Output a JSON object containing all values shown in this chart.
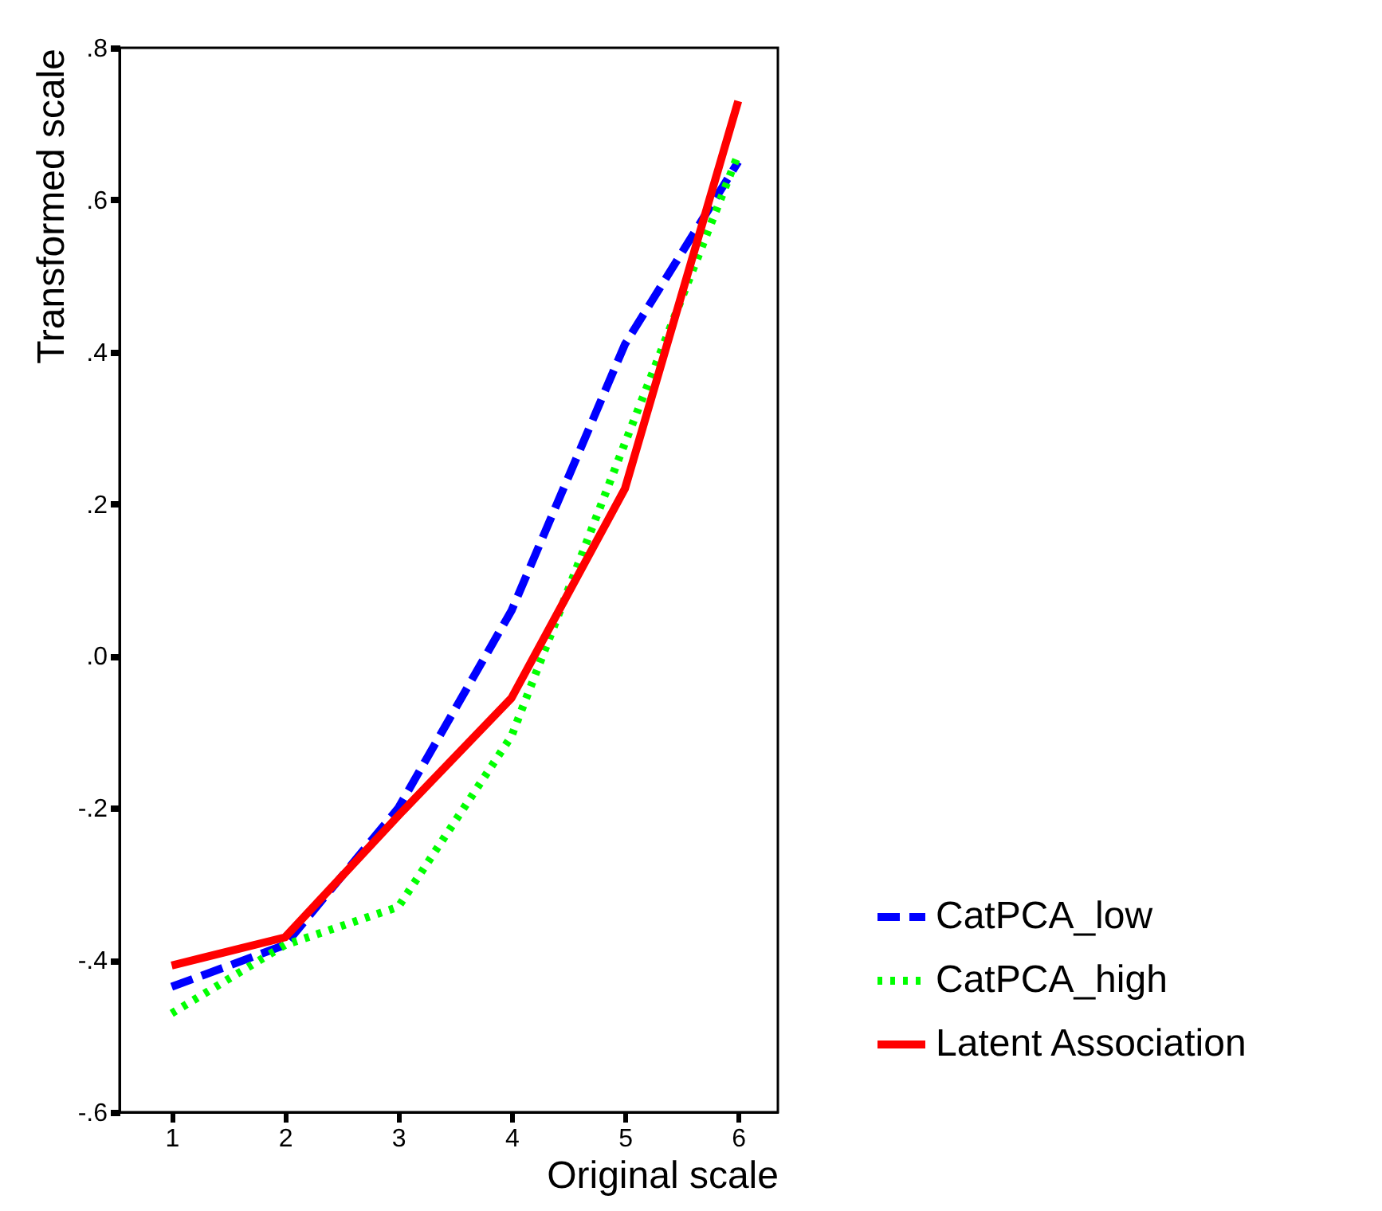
{
  "chart_data": {
    "type": "line",
    "xlabel": "Original scale",
    "ylabel": "Transformed scale",
    "x": [
      1,
      2,
      3,
      4,
      5,
      6
    ],
    "series": [
      {
        "name": "CatPCA_low",
        "color": "#0000ff",
        "line_style": "dashed",
        "values": [
          -0.435,
          -0.38,
          -0.2,
          0.06,
          0.41,
          0.65
        ]
      },
      {
        "name": "CatPCA_high",
        "color": "#00ff00",
        "line_style": "dotted",
        "values": [
          -0.47,
          -0.38,
          -0.33,
          -0.105,
          0.28,
          0.66
        ]
      },
      {
        "name": "Latent Association",
        "color": "#ff0000",
        "line_style": "solid",
        "values": [
          -0.407,
          -0.37,
          -0.21,
          -0.055,
          0.22,
          0.73
        ]
      }
    ],
    "xlim": [
      0.54,
      6.35
    ],
    "xticks": [
      1,
      2,
      3,
      4,
      5,
      6
    ],
    "ylim": [
      -0.6,
      0.8
    ],
    "yticks": [
      {
        "value": -0.6,
        "label": "-.6"
      },
      {
        "value": -0.4,
        "label": "-.4"
      },
      {
        "value": -0.2,
        "label": "-.2"
      },
      {
        "value": 0,
        "label": ".0"
      },
      {
        "value": 0.2,
        "label": ".2"
      },
      {
        "value": 0.4,
        "label": ".4"
      },
      {
        "value": 0.6,
        "label": ".6"
      },
      {
        "value": 0.8,
        "label": ".8"
      }
    ],
    "grid": false,
    "legend": "bottom right",
    "marker": "none"
  }
}
